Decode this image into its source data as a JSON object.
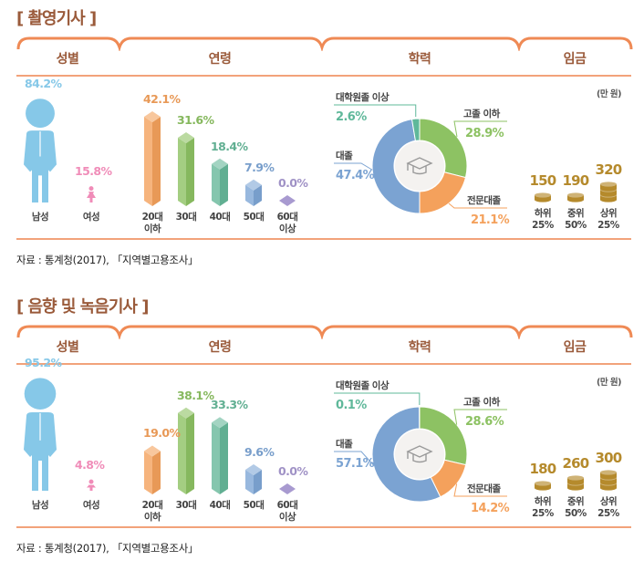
{
  "headers": {
    "gender": "성별",
    "age": "연령",
    "education": "학력",
    "wage": "임금"
  },
  "colors": {
    "title": "#9a5a3a",
    "bracket": "#ef8a55",
    "male": "#86c8e8",
    "female": "#f08cb8",
    "age": [
      "#f4a15c",
      "#8dc263",
      "#66b89a",
      "#7ea6d6",
      "#a89ad0"
    ],
    "edu": {
      "high": "#8dc263",
      "college": "#f4a15c",
      "univ": "#7ba3d2",
      "grad": "#5fb89a"
    },
    "wage": "#b58a2c"
  },
  "chart_data": [
    {
      "title": "[ 촬영기사 ]",
      "gender": {
        "type": "bar",
        "categories": [
          "남성",
          "여성"
        ],
        "values": [
          84.2,
          15.8
        ],
        "labels": [
          "84.2%",
          "15.8%"
        ]
      },
      "age": {
        "type": "bar",
        "categories": [
          "20대\n이하",
          "30대",
          "40대",
          "50대",
          "60대\n이상"
        ],
        "category_lines": [
          [
            "20대",
            "이하"
          ],
          [
            "30대"
          ],
          [
            "40대"
          ],
          [
            "50대"
          ],
          [
            "60대",
            "이상"
          ]
        ],
        "values": [
          42.1,
          31.6,
          18.4,
          7.9,
          0.0
        ],
        "labels": [
          "42.1%",
          "31.6%",
          "18.4%",
          "7.9%",
          "0.0%"
        ]
      },
      "education": {
        "type": "pie",
        "categories": [
          "고졸 이하",
          "전문대졸",
          "대졸",
          "대학원졸 이상"
        ],
        "values": [
          28.9,
          21.1,
          47.4,
          2.6
        ],
        "labels": [
          "28.9%",
          "21.1%",
          "47.4%",
          "2.6%"
        ]
      },
      "wage": {
        "type": "bar",
        "unit": "(만 원)",
        "categories": [
          [
            "하위",
            "25%"
          ],
          [
            "중위",
            "50%"
          ],
          [
            "상위",
            "25%"
          ]
        ],
        "values": [
          150,
          190,
          320
        ],
        "labels": [
          "150",
          "190",
          "320"
        ]
      },
      "source": "자료 : 통계청(2017), 「지역별고용조사」"
    },
    {
      "title": "[ 음향 및 녹음기사 ]",
      "gender": {
        "type": "bar",
        "categories": [
          "남성",
          "여성"
        ],
        "values": [
          95.2,
          4.8
        ],
        "labels": [
          "95.2%",
          "4.8%"
        ]
      },
      "age": {
        "type": "bar",
        "categories": [
          "20대\n이하",
          "30대",
          "40대",
          "50대",
          "60대\n이상"
        ],
        "category_lines": [
          [
            "20대",
            "이하"
          ],
          [
            "30대"
          ],
          [
            "40대"
          ],
          [
            "50대"
          ],
          [
            "60대",
            "이상"
          ]
        ],
        "values": [
          19.0,
          38.1,
          33.3,
          9.6,
          0.0
        ],
        "labels": [
          "19.0%",
          "38.1%",
          "33.3%",
          "9.6%",
          "0.0%"
        ]
      },
      "education": {
        "type": "pie",
        "categories": [
          "고졸 이하",
          "전문대졸",
          "대졸",
          "대학원졸 이상"
        ],
        "values": [
          28.6,
          14.2,
          57.1,
          0.1
        ],
        "labels": [
          "28.6%",
          "14.2%",
          "57.1%",
          "0.1%"
        ]
      },
      "wage": {
        "type": "bar",
        "unit": "(만 원)",
        "categories": [
          [
            "하위",
            "25%"
          ],
          [
            "중위",
            "50%"
          ],
          [
            "상위",
            "25%"
          ]
        ],
        "values": [
          180,
          260,
          300
        ],
        "labels": [
          "180",
          "260",
          "300"
        ]
      },
      "source": "자료 : 통계청(2017), 「지역별고용조사」"
    }
  ]
}
